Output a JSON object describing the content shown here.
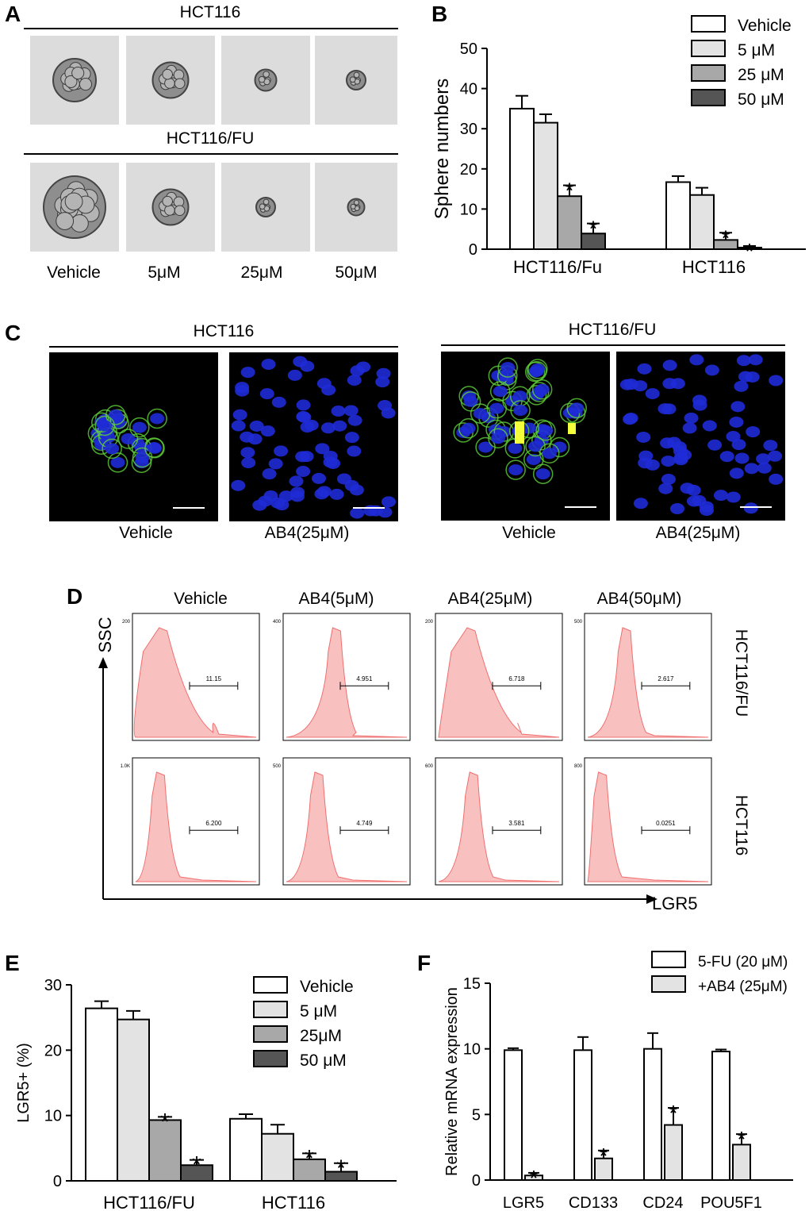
{
  "panels": {
    "a": {
      "letter": "A",
      "rows": [
        {
          "title": "HCT116",
          "sphere_sizes": [
            0.9,
            0.75,
            0.45,
            0.4
          ]
        },
        {
          "title": "HCT116/FU",
          "sphere_sizes": [
            1.3,
            0.75,
            0.4,
            0.35
          ]
        }
      ],
      "columns": [
        "Vehicle",
        "5μM",
        "25μM",
        "50μM"
      ],
      "image_colors": {
        "background": "#dcdcdc",
        "sphere": "#8e8e8e",
        "sphere_edge": "#444444"
      }
    },
    "b": {
      "letter": "B",
      "chart_data": {
        "type": "bar",
        "ylabel": "Sphere numbers",
        "ylim": [
          0,
          50
        ],
        "yticks": [
          0,
          10,
          20,
          30,
          40,
          50
        ],
        "categories": [
          "HCT116/Fu",
          "HCT116"
        ],
        "series": [
          {
            "name": "Vehicle",
            "values": [
              35,
              16.7
            ],
            "errors": [
              3.2,
              1.5
            ],
            "color": "#ffffff",
            "sig": [
              false,
              false
            ]
          },
          {
            "name": "5 μM",
            "values": [
              31.5,
              13.5
            ],
            "errors": [
              2.1,
              1.8
            ],
            "color": "#e3e3e3",
            "sig": [
              false,
              false
            ]
          },
          {
            "name": "25 μM",
            "values": [
              13.2,
              2.3
            ],
            "errors": [
              2.7,
              1.8
            ],
            "color": "#a8a8a8",
            "sig": [
              true,
              true
            ]
          },
          {
            "name": "50 μM",
            "values": [
              3.9,
              0.4
            ],
            "errors": [
              2.5,
              0.4
            ],
            "color": "#555555",
            "sig": [
              true,
              true
            ]
          }
        ],
        "sig_marker": "*",
        "legend": "top-right"
      }
    },
    "c": {
      "letter": "C",
      "groups": [
        {
          "title": "HCT116",
          "captions": [
            "Vehicle",
            "AB4(25μM)"
          ]
        },
        {
          "title": "HCT116/FU",
          "captions": [
            "Vehicle",
            "AB4(25μM)"
          ]
        }
      ],
      "colors": {
        "nuclei": "#1f2bd6",
        "membrane": "#5fd13a",
        "hotspot": "#f2ff3a",
        "field": "#000000"
      }
    },
    "d": {
      "letter": "D",
      "columns": [
        "Vehicle",
        "AB4(5μM)",
        "AB4(25μM)",
        "AB4(50μM)"
      ],
      "rows": [
        "HCT116/FU",
        "HCT116"
      ],
      "y_axis_label": "SSC",
      "x_axis_label": "LGR5",
      "gate_values": [
        [
          "11.15",
          "4.951",
          "6.718",
          "2.617"
        ],
        [
          "6.200",
          "4.749",
          "3.581",
          "0.0251"
        ]
      ],
      "ymax_labels": [
        [
          "200",
          "400",
          "200",
          "500"
        ],
        [
          "1.0K",
          "500",
          "600",
          "800"
        ]
      ],
      "fill_color": "#f9c0c0",
      "line_color": "#ef6f6f"
    },
    "e": {
      "letter": "E",
      "chart_data": {
        "type": "bar",
        "ylabel": "LGR5+ (%)",
        "ylim": [
          0,
          30
        ],
        "yticks": [
          0,
          10,
          20,
          30
        ],
        "categories": [
          "HCT116/FU",
          "HCT116"
        ],
        "series": [
          {
            "name": "Vehicle",
            "values": [
              26.4,
              9.5
            ],
            "errors": [
              1.1,
              0.7
            ],
            "color": "#ffffff",
            "sig": [
              false,
              false
            ]
          },
          {
            "name": "5 μM",
            "values": [
              24.7,
              7.2
            ],
            "errors": [
              1.3,
              1.4
            ],
            "color": "#e3e3e3",
            "sig": [
              false,
              false
            ]
          },
          {
            "name": "25μM",
            "values": [
              9.3,
              3.3
            ],
            "errors": [
              0.5,
              0.9
            ],
            "color": "#a8a8a8",
            "sig": [
              true,
              true
            ]
          },
          {
            "name": "50 μM",
            "values": [
              2.4,
              1.4
            ],
            "errors": [
              0.8,
              1.3
            ],
            "color": "#555555",
            "sig": [
              true,
              true
            ]
          }
        ],
        "sig_marker": "*",
        "legend": "top-right"
      }
    },
    "f": {
      "letter": "F",
      "chart_data": {
        "type": "bar",
        "ylabel": "Relative mRNA expression",
        "ylim": [
          0,
          15
        ],
        "yticks": [
          0,
          5,
          10,
          15
        ],
        "categories": [
          "LGR5",
          "CD133",
          "CD24",
          "POU5F1"
        ],
        "series": [
          {
            "name": "5-FU (20 μM)",
            "values": [
              9.9,
              9.9,
              10.0,
              9.8
            ],
            "errors": [
              0.15,
              1.0,
              1.2,
              0.15
            ],
            "color": "#ffffff",
            "sig": [
              false,
              false,
              false,
              false
            ]
          },
          {
            "name": "+AB4 (25μM)",
            "values": [
              0.35,
              1.65,
              4.2,
              2.7
            ],
            "errors": [
              0.2,
              0.6,
              1.3,
              0.8
            ],
            "color": "#e3e3e3",
            "sig": [
              true,
              true,
              true,
              true
            ]
          }
        ],
        "sig_marker": "*",
        "legend": "top-right"
      }
    }
  }
}
